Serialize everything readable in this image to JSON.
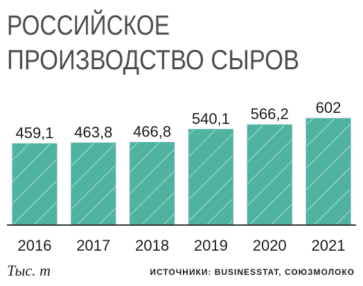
{
  "chart_data": {
    "type": "bar",
    "title": [
      "РОССИЙСКОЕ",
      "ПРОИЗВОДСТВО СЫРОВ"
    ],
    "categories": [
      "2016",
      "2017",
      "2018",
      "2019",
      "2020",
      "2021"
    ],
    "values": [
      459.1,
      463.8,
      466.8,
      540.1,
      566.2,
      602
    ],
    "value_labels": [
      "459,1",
      "463,8",
      "466,8",
      "540,1",
      "566,2",
      "602"
    ],
    "color": "#4fb3a0",
    "unit": "Тыс. т",
    "source": "ИСТОЧНИКИ: BUSINESSTAT, СОЮЗМОЛОКО"
  }
}
